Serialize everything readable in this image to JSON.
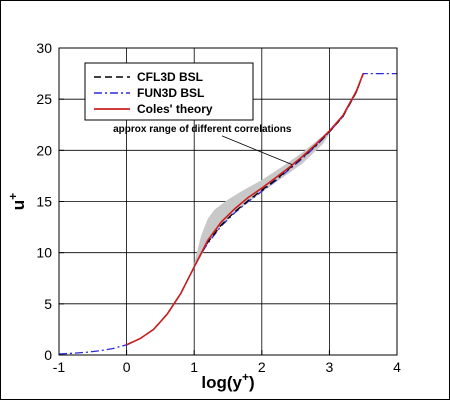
{
  "chart_data": {
    "type": "line",
    "xlabel": "log(y+)",
    "ylabel": "u+",
    "xlim": [
      -1,
      4
    ],
    "ylim": [
      0,
      30
    ],
    "x_ticks": [
      "-1",
      "0",
      "1",
      "2",
      "3",
      "4"
    ],
    "y_ticks": [
      "0",
      "5",
      "10",
      "15",
      "20",
      "25",
      "30"
    ],
    "grid": true,
    "legend_position": "top-left",
    "series": [
      {
        "name": "CFL3D BSL",
        "color": "#000000",
        "style": "dashed",
        "x": [
          0.0,
          0.2,
          0.4,
          0.6,
          0.8,
          0.9,
          1.0,
          1.1,
          1.2,
          1.4,
          1.6,
          1.8,
          2.0,
          2.2,
          2.4,
          2.6,
          2.8,
          3.0,
          3.2,
          3.4,
          3.5
        ],
        "y": [
          1.0,
          1.6,
          2.5,
          4.0,
          6.0,
          7.3,
          8.6,
          9.9,
          11.0,
          12.7,
          14.0,
          15.1,
          16.1,
          17.1,
          18.2,
          19.3,
          20.5,
          21.8,
          23.3,
          25.7,
          27.5
        ]
      },
      {
        "name": "FUN3D BSL",
        "color": "#2a2ad8",
        "style": "dashdot",
        "x": [
          -1.0,
          -0.8,
          -0.6,
          -0.4,
          -0.2,
          0.0,
          0.2,
          0.4,
          0.6,
          0.8,
          0.9,
          1.0,
          1.1,
          1.2,
          1.4,
          1.6,
          1.8,
          2.0,
          2.2,
          2.4,
          2.6,
          2.8,
          3.0,
          3.2,
          3.4,
          3.5,
          3.6,
          3.8,
          4.0
        ],
        "y": [
          0.1,
          0.17,
          0.26,
          0.41,
          0.64,
          1.0,
          1.6,
          2.5,
          4.0,
          6.0,
          7.3,
          8.6,
          9.9,
          10.9,
          12.6,
          13.9,
          15.0,
          16.0,
          17.0,
          18.1,
          19.2,
          20.4,
          21.8,
          23.3,
          25.7,
          27.5,
          27.5,
          27.5,
          27.5
        ]
      },
      {
        "name": "Coles' theory",
        "color": "#cc1f1f",
        "style": "solid",
        "x": [
          0.0,
          0.2,
          0.4,
          0.6,
          0.8,
          0.9,
          1.0,
          1.1,
          1.2,
          1.4,
          1.6,
          1.8,
          2.0,
          2.2,
          2.4,
          2.6,
          2.8,
          3.0,
          3.2,
          3.4,
          3.5
        ],
        "y": [
          1.0,
          1.6,
          2.5,
          4.0,
          6.0,
          7.3,
          8.6,
          9.9,
          11.2,
          13.0,
          14.3,
          15.4,
          16.3,
          17.3,
          18.3,
          19.4,
          20.6,
          21.9,
          23.4,
          25.8,
          27.5
        ]
      }
    ],
    "band": {
      "color": "#c8c8c8",
      "upper": {
        "x": [
          1.0,
          1.1,
          1.2,
          1.3,
          1.5,
          1.7,
          2.0,
          2.3,
          2.6,
          2.9,
          3.0
        ],
        "y": [
          9.0,
          11.6,
          13.3,
          14.2,
          15.2,
          16.0,
          17.1,
          18.4,
          19.8,
          21.4,
          22.0
        ]
      },
      "lower": {
        "x": [
          1.0,
          1.1,
          1.2,
          1.3,
          1.5,
          1.7,
          2.0,
          2.3,
          2.6,
          2.9,
          3.0
        ],
        "y": [
          8.6,
          9.6,
          10.9,
          11.9,
          13.3,
          14.4,
          15.9,
          17.3,
          18.7,
          20.6,
          21.6
        ]
      }
    },
    "annotation": {
      "text": "approx range of different correlations",
      "text_at": [
        -0.2,
        21.8
      ],
      "arrow_to": [
        2.45,
        18.6
      ]
    }
  }
}
